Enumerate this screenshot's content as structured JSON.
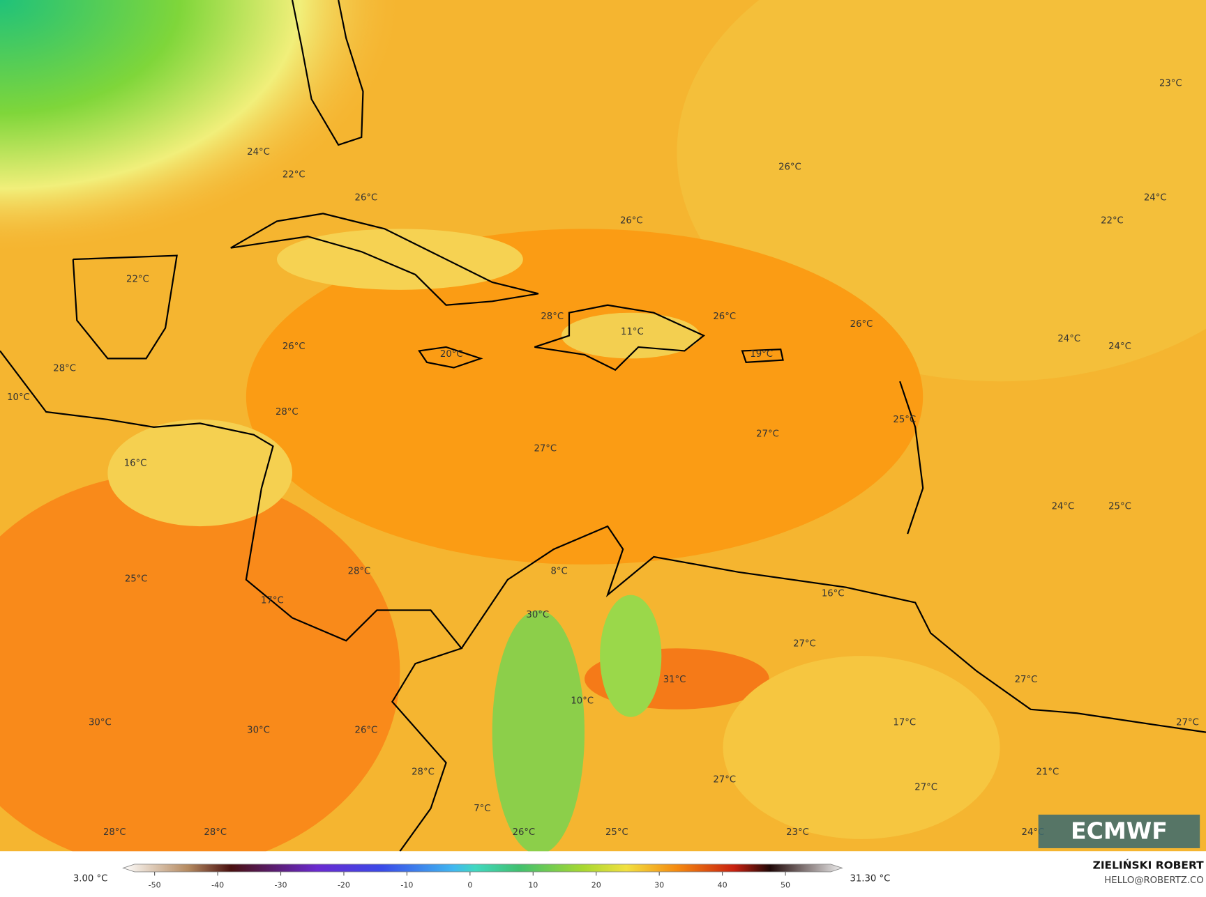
{
  "map_labels": [
    "24°C",
    "22°C",
    "26°C",
    "22°C",
    "26°C",
    "28°C",
    "10°C",
    "28°C",
    "16°C",
    "20°C",
    "28°C",
    "11°C",
    "26°C",
    "26°C",
    "23°C",
    "24°C",
    "22°C",
    "26°C",
    "26°C",
    "24°C",
    "24°C",
    "19°C",
    "25°C",
    "27°C",
    "27°C",
    "24°C",
    "25°C",
    "25°C",
    "28°C",
    "8°C",
    "16°C",
    "17°C",
    "30°C",
    "27°C",
    "31°C",
    "27°C",
    "10°C",
    "17°C",
    "27°C",
    "30°C",
    "30°C",
    "26°C",
    "21°C",
    "28°C",
    "27°C",
    "27°C",
    "7°C",
    "28°C",
    "28°C",
    "26°C",
    "25°C",
    "23°C",
    "24°C"
  ],
  "colorbar": {
    "min_label": "3.00 °C",
    "max_label": "31.30 °C",
    "lim": [
      -55,
      59
    ],
    "ticks": [
      -50,
      -40,
      -30,
      -20,
      -10,
      0,
      10,
      20,
      30,
      40,
      50
    ]
  },
  "credit": {
    "author": "ZIELIŃSKI ROBERT",
    "contact": "HELLO@ROBERTZ.CO",
    "logo": "ECMWF"
  }
}
